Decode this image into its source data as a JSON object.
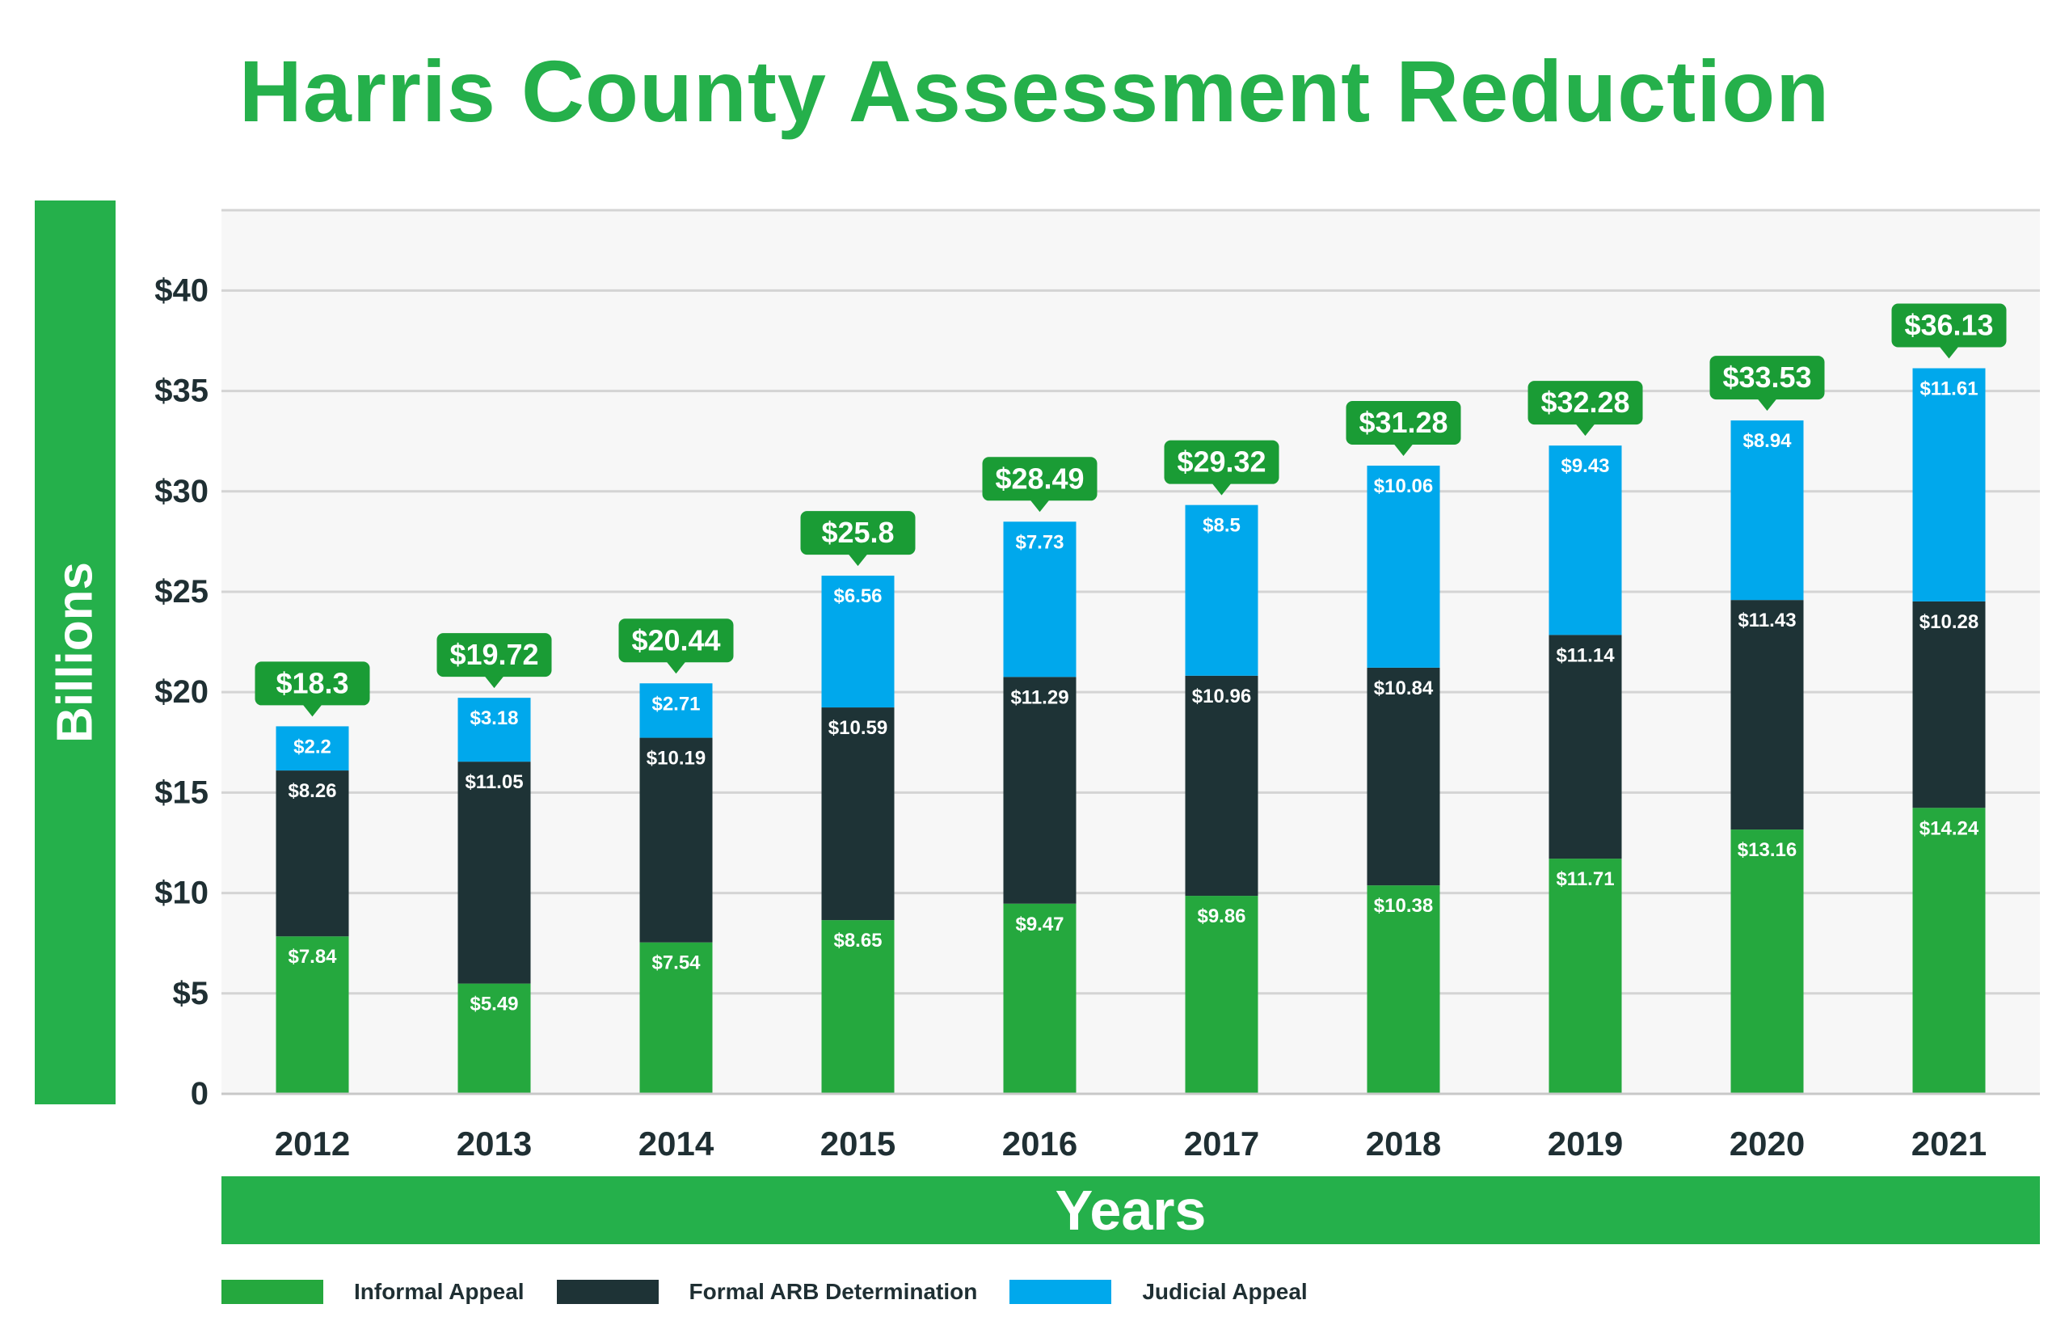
{
  "chart_data": {
    "type": "bar",
    "stacked": true,
    "title": "Harris County Assessment Reduction",
    "xlabel": "Years",
    "ylabel": "Billions",
    "ylim": [
      0,
      44
    ],
    "yticks": [
      0,
      5,
      10,
      15,
      20,
      25,
      30,
      35,
      40
    ],
    "ytick_labels": [
      "0",
      "$5",
      "$10",
      "$15",
      "$20",
      "$25",
      "$30",
      "$35",
      "$40"
    ],
    "grid": true,
    "legend_position": "bottom-left",
    "categories": [
      "2012",
      "2013",
      "2014",
      "2015",
      "2016",
      "2017",
      "2018",
      "2019",
      "2020",
      "2021"
    ],
    "series": [
      {
        "name": "Informal Appeal",
        "color": "#25a83e",
        "values": [
          7.84,
          5.49,
          7.54,
          8.65,
          9.47,
          9.86,
          10.38,
          11.71,
          13.16,
          14.24
        ],
        "labels": [
          "$7.84",
          "$5.49",
          "$7.54",
          "$8.65",
          "$9.47",
          "$9.86",
          "$10.38",
          "$11.71",
          "$13.16",
          "$14.24"
        ]
      },
      {
        "name": "Formal ARB Determination",
        "color": "#1e3336",
        "values": [
          8.26,
          11.05,
          10.19,
          10.59,
          11.29,
          10.96,
          10.84,
          11.14,
          11.43,
          10.28
        ],
        "labels": [
          "$8.26",
          "$11.05",
          "$10.19",
          "$10.59",
          "$11.29",
          "$10.96",
          "$10.84",
          "$11.14",
          "$11.43",
          "$10.28"
        ]
      },
      {
        "name": "Judicial Appeal",
        "color": "#00a8ec",
        "values": [
          2.2,
          3.18,
          2.71,
          6.56,
          7.73,
          8.5,
          10.06,
          9.43,
          8.94,
          11.61
        ],
        "labels": [
          "$2.2",
          "$3.18",
          "$2.71",
          "$6.56",
          "$7.73",
          "$8.5",
          "$10.06",
          "$9.43",
          "$8.94",
          "$11.61"
        ]
      }
    ],
    "totals": [
      18.3,
      19.72,
      20.44,
      25.8,
      28.49,
      29.32,
      31.28,
      32.28,
      33.53,
      36.13
    ],
    "total_labels": [
      "$18.3",
      "$19.72",
      "$20.44",
      "$25.8",
      "$28.49",
      "$29.32",
      "$31.28",
      "$32.28",
      "$33.53",
      "$36.13"
    ],
    "total_badge_color": "#1a9c35"
  }
}
